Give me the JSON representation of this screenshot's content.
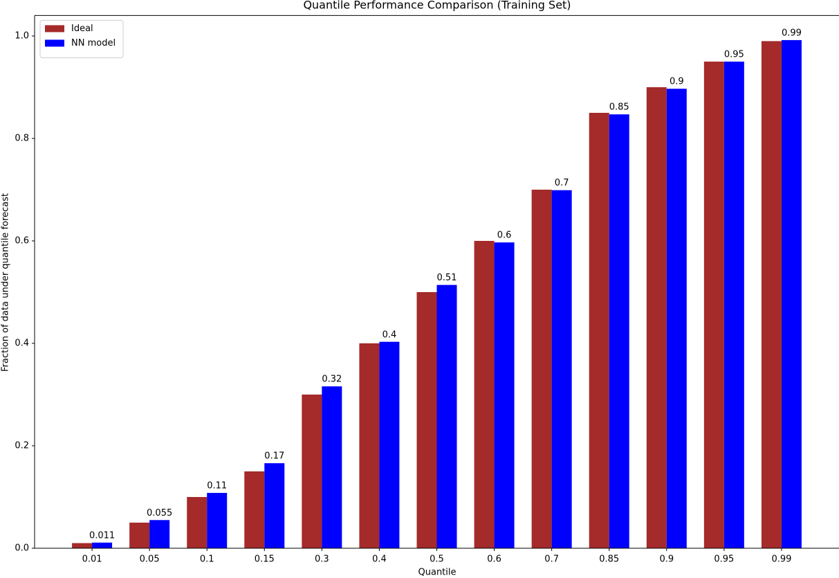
{
  "chart_data": {
    "type": "bar",
    "title": "Quantile Performance Comparison (Training Set)",
    "x_label": "Quantile",
    "y_label": "Fraction of data under quantile forecast",
    "categories": [
      "0.01",
      "0.05",
      "0.1",
      "0.15",
      "0.3",
      "0.4",
      "0.5",
      "0.6",
      "0.7",
      "0.85",
      "0.9",
      "0.95",
      "0.99"
    ],
    "series": [
      {
        "name": "Ideal",
        "color": "#a52a2a",
        "values": [
          0.01,
          0.05,
          0.1,
          0.15,
          0.3,
          0.4,
          0.5,
          0.6,
          0.7,
          0.85,
          0.9,
          0.95,
          0.99
        ]
      },
      {
        "name": "NN model",
        "color": "#0000ff",
        "values": [
          0.011,
          0.055,
          0.108,
          0.166,
          0.316,
          0.403,
          0.514,
          0.597,
          0.699,
          0.847,
          0.897,
          0.95,
          0.992
        ],
        "value_labels": [
          "0.011",
          "0.055",
          "0.11",
          "0.17",
          "0.32",
          "0.4",
          "0.51",
          "0.6",
          "0.7",
          "0.85",
          "0.9",
          "0.95",
          "0.99"
        ]
      }
    ],
    "ylim": [
      0,
      1.04
    ],
    "yticks": [
      {
        "value": 0,
        "label": "0.0"
      },
      0.2,
      0.4,
      0.6,
      0.8,
      {
        "value": 1,
        "label": "1.0"
      }
    ],
    "legend": "upper left"
  }
}
